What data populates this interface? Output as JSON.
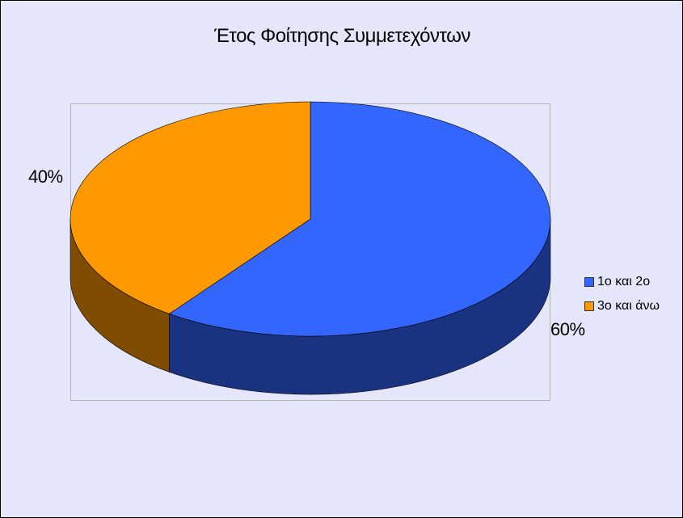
{
  "chart_data": {
    "type": "pie",
    "title": "Έτος Φοίτησης Συμμετεχόντων",
    "categories": [
      "1ο και 2ο",
      "3ο και άνω"
    ],
    "values": [
      60,
      40
    ],
    "data_labels": [
      "60%",
      "40%"
    ],
    "colors": [
      "#3366ff",
      "#ff9900"
    ],
    "side_colors": [
      "#1a3380",
      "#804c00"
    ],
    "style": "3d",
    "legend": "right"
  }
}
